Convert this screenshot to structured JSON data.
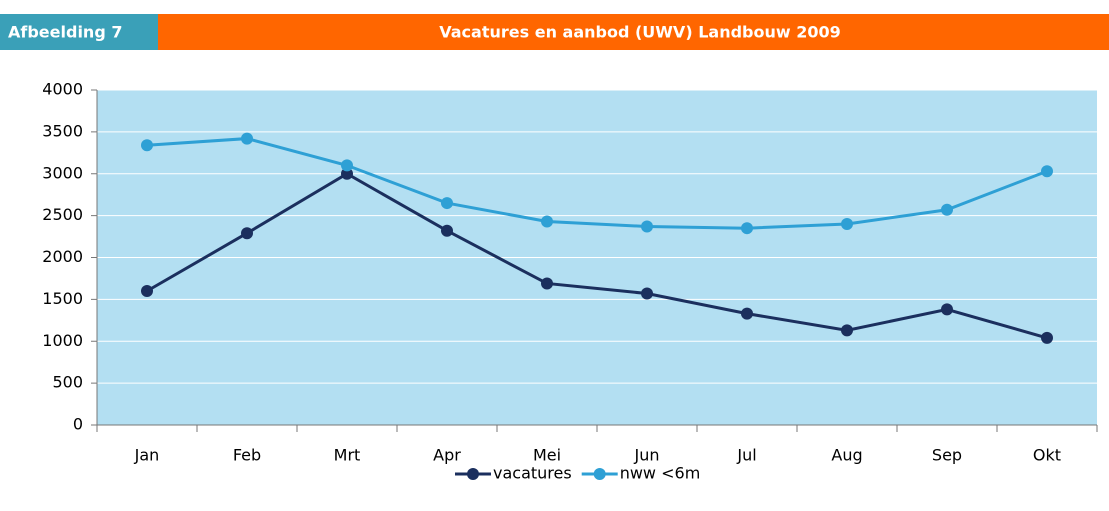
{
  "chart_data": {
    "type": "line",
    "figure_label": "Afbeelding 7",
    "title": "Vacatures en aanbod (UWV) Landbouw 2009",
    "categories": [
      "Jan",
      "Feb",
      "Mrt",
      "Apr",
      "Mei",
      "Jun",
      "Jul",
      "Aug",
      "Sep",
      "Okt"
    ],
    "series": [
      {
        "name": "vacatures",
        "color": "#1b2f5e",
        "values": [
          1600,
          2290,
          3000,
          2320,
          1690,
          1570,
          1330,
          1130,
          1380,
          1040
        ]
      },
      {
        "name": "nww <6m",
        "color": "#2ea0d5",
        "values": [
          3340,
          3420,
          3100,
          2650,
          2430,
          2370,
          2350,
          2400,
          2570,
          3030
        ]
      }
    ],
    "ylim": [
      0,
      4000
    ],
    "yticks": [
      0,
      500,
      1000,
      1500,
      2000,
      2500,
      3000,
      3500,
      4000
    ],
    "grid": true,
    "legend": "bottom",
    "plot_background": "#b3dff2"
  }
}
